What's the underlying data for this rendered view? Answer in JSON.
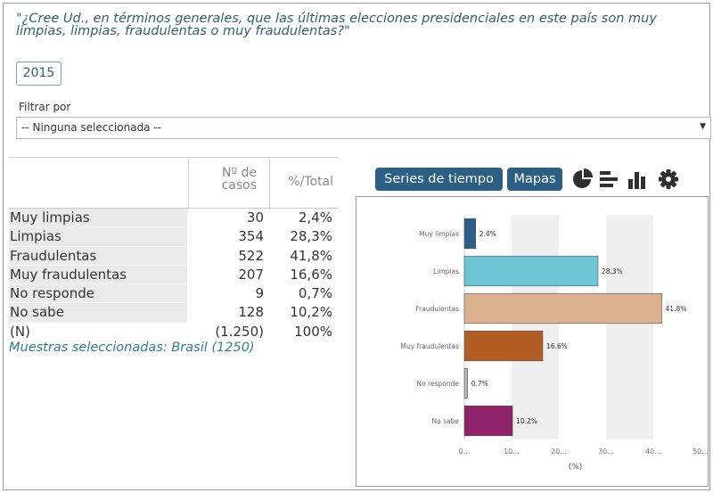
{
  "question": "\"¿Cree Ud., en términos generales, que las últimas elecciones presidenciales en este país son muy limpias, limpias, fraudulentas o muy fraudulentas?\"",
  "year_button": "2015",
  "filter": {
    "label": "Filtrar por",
    "selected": "-- Ninguna seleccionada --",
    "arrow": "▼"
  },
  "table": {
    "headers": {
      "cases_line1": "Nº de",
      "cases_line2": "casos",
      "pct": "%/Total"
    },
    "rows": [
      {
        "label": "Muy limpias",
        "n": "30",
        "pct": "2,4%"
      },
      {
        "label": "Limpias",
        "n": "354",
        "pct": "28,3%"
      },
      {
        "label": "Fraudulentas",
        "n": "522",
        "pct": "41,8%"
      },
      {
        "label": "Muy fraudulentas",
        "n": "207",
        "pct": "16,6%"
      },
      {
        "label": "No responde",
        "n": "9",
        "pct": "0,7%"
      },
      {
        "label": "No sabe",
        "n": "128",
        "pct": "10,2%"
      }
    ],
    "total": {
      "label": "(N)",
      "n": "(1.250)",
      "pct": "100%"
    },
    "sample_note": "Muestras seleccionadas: Brasil (1250)"
  },
  "toolbar": {
    "series_label": "Series de tiempo",
    "maps_label": "Mapas",
    "icons": [
      "pie-chart-icon",
      "horizontal-bar-icon",
      "vertical-bar-icon",
      "gear-icon"
    ]
  },
  "chart_data": {
    "type": "bar",
    "orientation": "horizontal",
    "categories": [
      "Muy limpias",
      "Limpias",
      "Fraudulentas",
      "Muy fraudulentas",
      "No responde",
      "No sabe"
    ],
    "values": [
      2.4,
      28.3,
      41.8,
      16.6,
      0.7,
      10.2
    ],
    "value_labels": [
      "2.4%",
      "28.3%",
      "41.8%",
      "16.6%",
      "0.7%",
      "10.2%"
    ],
    "colors": [
      "#2b5f8a",
      "#6cc6d6",
      "#dbb190",
      "#b35d26",
      "#b8b8b8",
      "#8e2368"
    ],
    "xticks": [
      "0...",
      "10...",
      "20...",
      "30...",
      "40...",
      "50..."
    ],
    "xlabel": "(%)",
    "xlim": [
      0,
      50
    ]
  }
}
